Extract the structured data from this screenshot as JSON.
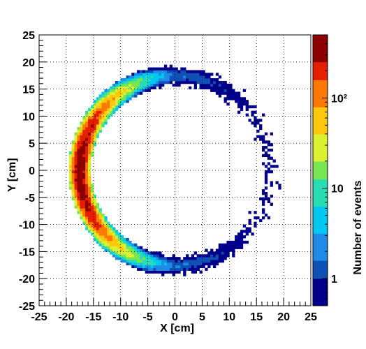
{
  "chart_data": {
    "type": "heatmap",
    "title": "",
    "xlabel": "X [cm]",
    "ylabel": "Y [cm]",
    "zlabel": "Number of events",
    "xlim": [
      -25,
      25
    ],
    "ylim": [
      -25,
      25
    ],
    "x_ticks": [
      "-25",
      "-20",
      "-15",
      "-10",
      "-5",
      "0",
      "5",
      "10",
      "15",
      "20",
      "25"
    ],
    "y_ticks": [
      "-25",
      "-20",
      "-15",
      "-10",
      "-5",
      "0",
      "5",
      "10",
      "15",
      "20",
      "25"
    ],
    "z_scale": "log",
    "zlim": [
      0.5,
      500
    ],
    "z_tick_labels": [
      "1",
      "10",
      "10²"
    ],
    "z_tick_values": [
      1,
      10,
      100
    ],
    "grid": true,
    "colormap": [
      "#00008b",
      "#0f50b4",
      "#1e8ce6",
      "#00c8f0",
      "#28dcb4",
      "#78e650",
      "#dcf032",
      "#ffc80a",
      "#ff7800",
      "#e61e00",
      "#8c0000"
    ],
    "distribution": {
      "shape": "ring",
      "center": [
        0,
        0
      ],
      "radius_cm": 17.5,
      "thickness_cm": 3.5,
      "peak_x": -18.5,
      "peak_y": -1,
      "peak_events": 450,
      "x_extent": [
        -20.5,
        20
      ],
      "y_extent": [
        -20.5,
        20
      ]
    }
  }
}
